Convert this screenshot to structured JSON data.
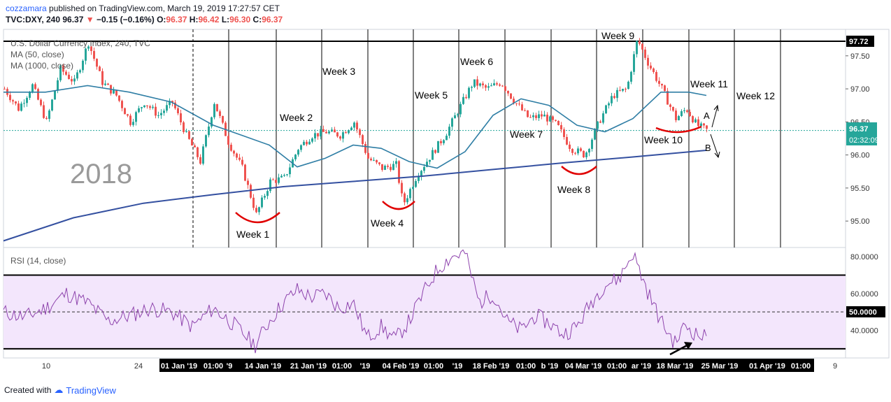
{
  "header": {
    "author": "cozzamara",
    "published": "published on TradingView.com, March 19, 2019 17:27:57 CET",
    "symbol": "TVC:DXY, 240",
    "last": "96.37",
    "change": "−0.15 (−0.16%)",
    "open_label": "O:",
    "open": "96.37",
    "high_label": "H:",
    "high": "96.42",
    "low_label": "L:",
    "low": "96.30",
    "close_label": "C:",
    "close": "96.37"
  },
  "footer": {
    "created_with": "Created with",
    "brand": "TradingView"
  },
  "colors": {
    "up": "#26a69a",
    "down": "#ef5350",
    "ma50": "#2f7ea5",
    "ma1000": "#3450a0",
    "rsi": "#8e44ad",
    "rsi_band": "#f3e6fc",
    "highlight": "#e00000"
  },
  "chart_data": [
    {
      "type": "line",
      "title": "U.S. Dollar Currency Index, 240, TVC",
      "legend": [
        "MA (50, close)",
        "MA (1000, close)"
      ],
      "watermark": "2018",
      "y_ticks": [
        "97.50",
        "97.00",
        "96.50",
        "96.00",
        "95.50",
        "95.00"
      ],
      "ylim": [
        94.6,
        97.9
      ],
      "x_ticks": [
        "10",
        "24",
        "01 Jan '19",
        "01:00",
        "'9",
        "14 Jan '19",
        "21 Jan '19",
        "01:00",
        "'19",
        "04 Feb '19",
        "01:00",
        "'19",
        "18 Feb '19",
        "01:00",
        "b '19",
        "04 Mar '19",
        "01:00",
        "ar '19",
        "18 Mar '19",
        "25 Mar '19",
        "01 Apr '19",
        "01:00",
        "9"
      ],
      "price_labels": {
        "level": "97.72",
        "last": "96.37",
        "countdown": "02:32:09"
      },
      "week_labels": [
        "Week 1",
        "Week 2",
        "Week 3",
        "Week 4",
        "Week 5",
        "Week 6",
        "Week 7",
        "Week 8",
        "Week 9",
        "Week 10",
        "Week 11",
        "Week 12"
      ],
      "annotations": [
        "A",
        "B"
      ],
      "series": [
        {
          "name": "MA (50, close)",
          "points": [
            [
              0,
              96.95
            ],
            [
              60,
              96.95
            ],
            [
              120,
              97.05
            ],
            [
              180,
              96.95
            ],
            [
              240,
              96.8
            ],
            [
              300,
              96.45
            ],
            [
              340,
              96.3
            ],
            [
              380,
              96.15
            ],
            [
              420,
              95.82
            ],
            [
              460,
              95.95
            ],
            [
              500,
              96.15
            ],
            [
              540,
              96.1
            ],
            [
              580,
              95.9
            ],
            [
              620,
              95.8
            ],
            [
              660,
              96.05
            ],
            [
              700,
              96.6
            ],
            [
              740,
              96.85
            ],
            [
              780,
              96.75
            ],
            [
              820,
              96.45
            ],
            [
              860,
              96.35
            ],
            [
              900,
              96.55
            ],
            [
              940,
              96.95
            ],
            [
              980,
              96.95
            ],
            [
              1005,
              96.9
            ]
          ]
        },
        {
          "name": "MA (1000, close)",
          "points": [
            [
              0,
              94.7
            ],
            [
              100,
              95.05
            ],
            [
              200,
              95.27
            ],
            [
              300,
              95.4
            ],
            [
              400,
              95.52
            ],
            [
              500,
              95.6
            ],
            [
              600,
              95.68
            ],
            [
              700,
              95.78
            ],
            [
              800,
              95.88
            ],
            [
              900,
              95.97
            ],
            [
              1005,
              96.07
            ]
          ]
        },
        {
          "name": "Price",
          "points": [
            [
              0,
              97.0
            ],
            [
              20,
              96.7
            ],
            [
              40,
              97.05
            ],
            [
              60,
              96.5
            ],
            [
              80,
              97.3
            ],
            [
              100,
              97.1
            ],
            [
              120,
              97.7
            ],
            [
              140,
              97.1
            ],
            [
              160,
              96.9
            ],
            [
              180,
              96.5
            ],
            [
              200,
              96.8
            ],
            [
              220,
              96.6
            ],
            [
              240,
              96.8
            ],
            [
              260,
              96.3
            ],
            [
              280,
              95.9
            ],
            [
              300,
              96.8
            ],
            [
              320,
              96.2
            ],
            [
              340,
              95.8
            ],
            [
              360,
              95.1
            ],
            [
              380,
              95.6
            ],
            [
              400,
              95.65
            ],
            [
              420,
              96.1
            ],
            [
              440,
              96.3
            ],
            [
              460,
              96.35
            ],
            [
              480,
              96.3
            ],
            [
              500,
              96.5
            ],
            [
              520,
              95.95
            ],
            [
              540,
              95.8
            ],
            [
              560,
              95.85
            ],
            [
              570,
              95.25
            ],
            [
              590,
              95.7
            ],
            [
              610,
              96.0
            ],
            [
              630,
              96.3
            ],
            [
              650,
              96.7
            ],
            [
              670,
              97.1
            ],
            [
              690,
              97.0
            ],
            [
              710,
              97.1
            ],
            [
              730,
              96.8
            ],
            [
              750,
              96.55
            ],
            [
              770,
              96.6
            ],
            [
              790,
              96.45
            ],
            [
              810,
              96.1
            ],
            [
              830,
              96.0
            ],
            [
              850,
              96.5
            ],
            [
              870,
              96.9
            ],
            [
              890,
              97.0
            ],
            [
              905,
              97.75
            ],
            [
              920,
              97.4
            ],
            [
              940,
              97.0
            ],
            [
              960,
              96.55
            ],
            [
              975,
              96.7
            ],
            [
              990,
              96.45
            ],
            [
              1005,
              96.37
            ]
          ]
        }
      ]
    },
    {
      "type": "line",
      "title": "RSI (14, close)",
      "y_ticks": [
        "80.0000",
        "60.0000",
        "50.0000",
        "40.0000"
      ],
      "ylim": [
        25,
        85
      ],
      "band": [
        30,
        70
      ],
      "series": [
        {
          "name": "RSI (14, close)",
          "points": [
            [
              0,
              50
            ],
            [
              30,
              47
            ],
            [
              60,
              52
            ],
            [
              90,
              60
            ],
            [
              120,
              55
            ],
            [
              150,
              45
            ],
            [
              180,
              48
            ],
            [
              210,
              52
            ],
            [
              240,
              50
            ],
            [
              270,
              42
            ],
            [
              300,
              52
            ],
            [
              330,
              43
            ],
            [
              360,
              32
            ],
            [
              380,
              45
            ],
            [
              400,
              55
            ],
            [
              420,
              62
            ],
            [
              440,
              58
            ],
            [
              460,
              60
            ],
            [
              480,
              52
            ],
            [
              500,
              55
            ],
            [
              520,
              36
            ],
            [
              540,
              42
            ],
            [
              560,
              35
            ],
            [
              580,
              45
            ],
            [
              600,
              60
            ],
            [
              620,
              73
            ],
            [
              640,
              80
            ],
            [
              660,
              82
            ],
            [
              680,
              55
            ],
            [
              700,
              60
            ],
            [
              720,
              45
            ],
            [
              740,
              40
            ],
            [
              760,
              48
            ],
            [
              780,
              44
            ],
            [
              800,
              38
            ],
            [
              820,
              42
            ],
            [
              840,
              55
            ],
            [
              860,
              65
            ],
            [
              880,
              68
            ],
            [
              900,
              82
            ],
            [
              920,
              62
            ],
            [
              940,
              45
            ],
            [
              960,
              33
            ],
            [
              975,
              43
            ],
            [
              990,
              38
            ],
            [
              1005,
              36
            ]
          ]
        }
      ]
    }
  ]
}
